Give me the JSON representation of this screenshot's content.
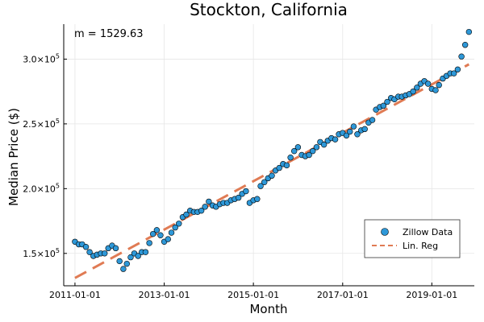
{
  "chart_data": {
    "type": "scatter",
    "title": "Stockton, California",
    "xlabel": "Month",
    "ylabel": "Median Price ($)",
    "annotation": "m = 1529.63",
    "xlim": [
      "2010-10-01",
      "2019-12-15"
    ],
    "ylim": [
      125000,
      327000
    ],
    "grid": true,
    "legend_position": "bottom-right",
    "x_ticks": [
      "2011-01-01",
      "2013-01-01",
      "2015-01-01",
      "2017-01-01",
      "2019-01-01"
    ],
    "y_ticks": [
      {
        "value": 150000,
        "mantissa": "1.5",
        "exp": "5"
      },
      {
        "value": 200000,
        "mantissa": "2.0",
        "exp": "5"
      },
      {
        "value": 250000,
        "mantissa": "2.5",
        "exp": "5"
      },
      {
        "value": 300000,
        "mantissa": "3.0",
        "exp": "5"
      }
    ],
    "tick_x_symbol": "×10",
    "series": [
      {
        "name": "Zillow Data",
        "kind": "scatter",
        "color": "#2e98d8",
        "x": [
          "2011-01",
          "2011-02",
          "2011-03",
          "2011-04",
          "2011-05",
          "2011-06",
          "2011-07",
          "2011-08",
          "2011-09",
          "2011-10",
          "2011-11",
          "2011-12",
          "2012-01",
          "2012-02",
          "2012-03",
          "2012-04",
          "2012-05",
          "2012-06",
          "2012-07",
          "2012-08",
          "2012-09",
          "2012-10",
          "2012-11",
          "2012-12",
          "2013-01",
          "2013-02",
          "2013-03",
          "2013-04",
          "2013-05",
          "2013-06",
          "2013-07",
          "2013-08",
          "2013-09",
          "2013-10",
          "2013-11",
          "2013-12",
          "2014-01",
          "2014-02",
          "2014-03",
          "2014-04",
          "2014-05",
          "2014-06",
          "2014-07",
          "2014-08",
          "2014-09",
          "2014-10",
          "2014-11",
          "2014-12",
          "2015-01",
          "2015-02",
          "2015-03",
          "2015-04",
          "2015-05",
          "2015-06",
          "2015-07",
          "2015-08",
          "2015-09",
          "2015-10",
          "2015-11",
          "2015-12",
          "2016-01",
          "2016-02",
          "2016-03",
          "2016-04",
          "2016-05",
          "2016-06",
          "2016-07",
          "2016-08",
          "2016-09",
          "2016-10",
          "2016-11",
          "2016-12",
          "2017-01",
          "2017-02",
          "2017-03",
          "2017-04",
          "2017-05",
          "2017-06",
          "2017-07",
          "2017-08",
          "2017-09",
          "2017-10",
          "2017-11",
          "2017-12",
          "2018-01",
          "2018-02",
          "2018-03",
          "2018-04",
          "2018-05",
          "2018-06",
          "2018-07",
          "2018-08",
          "2018-09",
          "2018-10",
          "2018-11",
          "2018-12",
          "2019-01",
          "2019-02",
          "2019-03",
          "2019-04",
          "2019-05",
          "2019-06",
          "2019-07",
          "2019-08",
          "2019-09",
          "2019-10",
          "2019-11"
        ],
        "y": [
          159000,
          157000,
          157000,
          155000,
          151000,
          148000,
          149000,
          150000,
          150000,
          154000,
          156000,
          154000,
          144000,
          138000,
          142000,
          147000,
          150000,
          148000,
          151000,
          151000,
          158000,
          165000,
          168000,
          164000,
          159000,
          161000,
          166000,
          170000,
          173000,
          178000,
          180000,
          183000,
          182000,
          182000,
          183000,
          186000,
          190000,
          187000,
          186000,
          188000,
          189000,
          189000,
          191000,
          192000,
          193000,
          196000,
          198000,
          189000,
          191000,
          192000,
          202000,
          205000,
          208000,
          210000,
          214000,
          216000,
          219000,
          218000,
          224000,
          229000,
          232000,
          226000,
          225000,
          226000,
          229000,
          232000,
          236000,
          234000,
          237000,
          239000,
          238000,
          242000,
          243000,
          241000,
          244000,
          248000,
          242000,
          245000,
          246000,
          251000,
          253000,
          261000,
          263000,
          264000,
          267000,
          270000,
          269000,
          271000,
          271000,
          272000,
          273000,
          275000,
          278000,
          281000,
          283000,
          281000,
          277000,
          276000,
          280000,
          285000,
          287000,
          289000,
          289000,
          292000,
          302000,
          311000,
          321000
        ]
      },
      {
        "name": "Lin. Reg",
        "kind": "line",
        "style": "dashed",
        "color": "#e07b54",
        "x": [
          "2011-01",
          "2019-11"
        ],
        "y": [
          131000,
          296000
        ]
      }
    ]
  }
}
